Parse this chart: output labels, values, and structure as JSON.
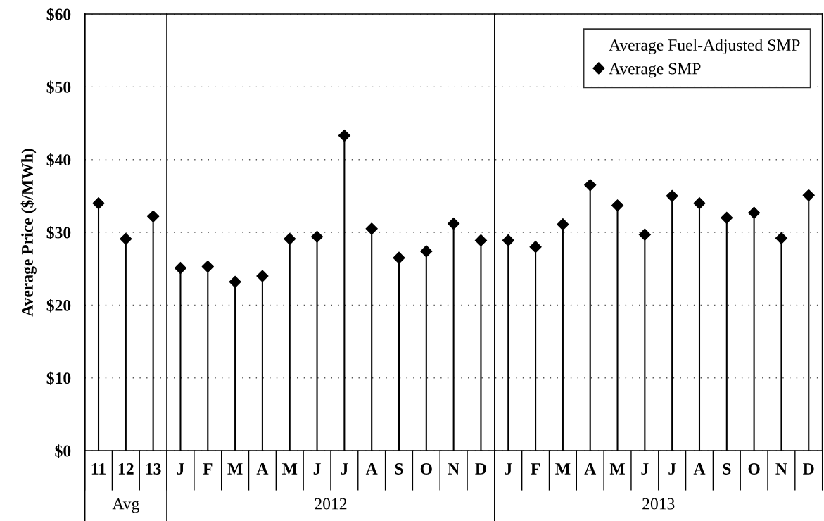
{
  "chart_data": {
    "type": "lollipop",
    "ylabel": "Average Price ($/MWh)",
    "categories": [
      "11",
      "12",
      "13",
      "J",
      "F",
      "M",
      "A",
      "M",
      "J",
      "J",
      "A",
      "S",
      "O",
      "N",
      "D",
      "J",
      "F",
      "M",
      "A",
      "M",
      "J",
      "J",
      "A",
      "S",
      "O",
      "N",
      "D"
    ],
    "series": [
      {
        "name": "Average Fuel-Adjusted SMP",
        "values": [
          null,
          null,
          null,
          null,
          null,
          null,
          null,
          null,
          null,
          null,
          null,
          null,
          null,
          null,
          null,
          null,
          null,
          null,
          null,
          null,
          null,
          null,
          null,
          null,
          null,
          null,
          null
        ]
      },
      {
        "name": "Average SMP",
        "color": "#000000",
        "values": [
          34.0,
          29.1,
          32.2,
          25.1,
          25.3,
          23.2,
          24.0,
          29.1,
          29.4,
          43.3,
          30.5,
          26.5,
          27.4,
          31.2,
          28.9,
          28.9,
          28.0,
          31.1,
          36.5,
          33.7,
          29.7,
          35.0,
          34.0,
          32.0,
          32.7,
          29.2,
          35.1
        ]
      }
    ],
    "annotations": [
      "Avg",
      "2012",
      "2013"
    ],
    "ylim": [
      0,
      60
    ],
    "yticks": [
      {
        "value": 0,
        "label": "$0"
      },
      {
        "value": 10,
        "label": "$10"
      },
      {
        "value": 20,
        "label": "$20"
      },
      {
        "value": 30,
        "label": "$30"
      },
      {
        "value": 40,
        "label": "$40"
      },
      {
        "value": 50,
        "label": "$50"
      },
      {
        "value": 60,
        "label": "$60"
      }
    ],
    "grid": "y",
    "legend": "top right",
    "marker": "diamond"
  }
}
